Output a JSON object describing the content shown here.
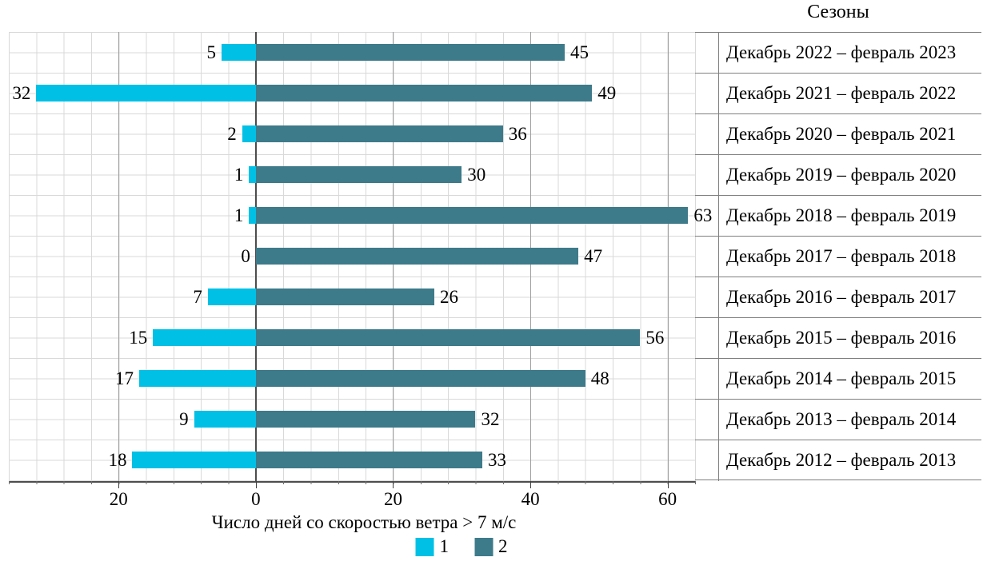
{
  "chart_data": {
    "type": "bar",
    "subtype": "diverging-horizontal",
    "title": "Сезоны",
    "xlabel": "Число дней со скоростью ветра > 7 м/с",
    "categories": [
      "Декабрь 2022 – февраль 2023",
      "Декабрь 2021 – февраль 2022",
      "Декабрь 2020 – февраль 2021",
      "Декабрь 2019 – февраль 2020",
      "Декабрь 2018 – февраль 2019",
      "Декабрь 2017 – февраль 2018",
      "Декабрь 2016 – февраль 2017",
      "Декабрь 2015 – февраль 2016",
      "Декабрь 2014 – февраль 2015",
      "Декабрь 2013 – февраль 2014",
      "Декабрь 2012 – февраль 2013"
    ],
    "series": [
      {
        "name": "1",
        "direction": "left",
        "color": "#00c0e6",
        "values": [
          5,
          32,
          2,
          1,
          1,
          0,
          7,
          15,
          17,
          9,
          18
        ]
      },
      {
        "name": "2",
        "direction": "right",
        "color": "#3d7a8a",
        "values": [
          45,
          49,
          36,
          30,
          63,
          47,
          26,
          56,
          48,
          32,
          33
        ]
      }
    ],
    "data_labels_shown": true,
    "xlim": [
      -36,
      64
    ],
    "x_major_unit": 20,
    "x_minor_unit": 4,
    "x_ticks": [
      -20,
      0,
      20,
      40,
      60
    ],
    "x_tick_labels": [
      "20",
      "0",
      "20",
      "40",
      "60"
    ],
    "grid": "major-and-minor, horizontal and vertical",
    "legend": {
      "position": "bottom",
      "entries": [
        "1",
        "2"
      ]
    }
  },
  "colors": {
    "series1": "#00c0e6",
    "series2": "#3d7a8a",
    "minor_grid": "#d9d9d9",
    "major_grid": "#9e9e9e",
    "axis_line": "#4d4d4d",
    "table_border": "#7f7f7f"
  }
}
